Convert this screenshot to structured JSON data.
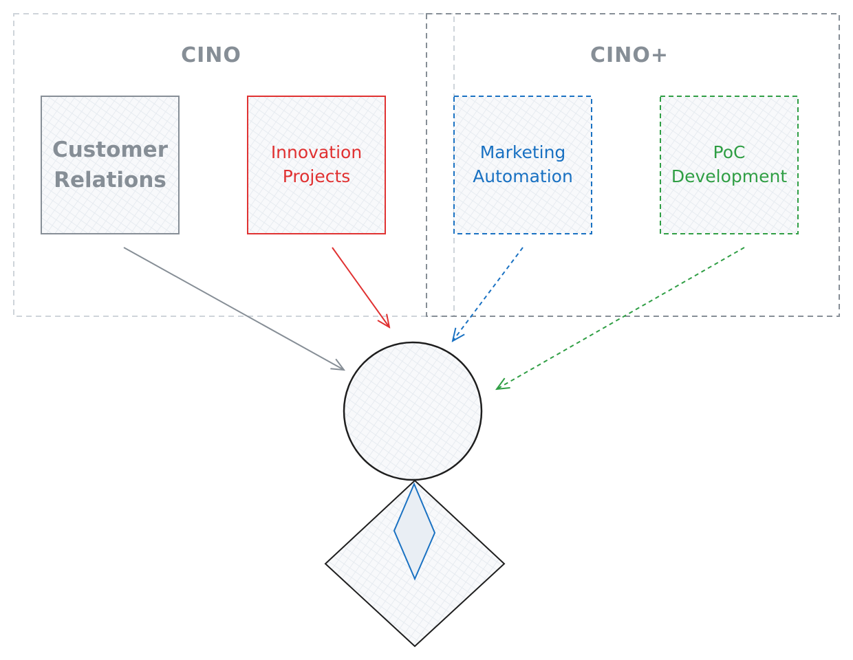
{
  "groups": {
    "cino": {
      "title": "CINO"
    },
    "cino_plus": {
      "title": "CINO+"
    }
  },
  "boxes": {
    "customer_relations": {
      "line1": "Customer",
      "line2": "Relations",
      "color": "#868e96"
    },
    "innovation_projects": {
      "line1": "Innovation",
      "line2": "Projects",
      "color": "#e03131"
    },
    "marketing_automation": {
      "line1": "Marketing",
      "line2": "Automation",
      "color": "#1971c2"
    },
    "poc_development": {
      "line1": "PoC",
      "line2": "Development",
      "color": "#2f9e44"
    }
  },
  "colors": {
    "group_cino_border": "#ced4da",
    "group_cino_plus_border": "#868e96",
    "figure_stroke": "#1e1e1e",
    "tie": "#1971c2",
    "hatch": "#dbe4ee"
  }
}
